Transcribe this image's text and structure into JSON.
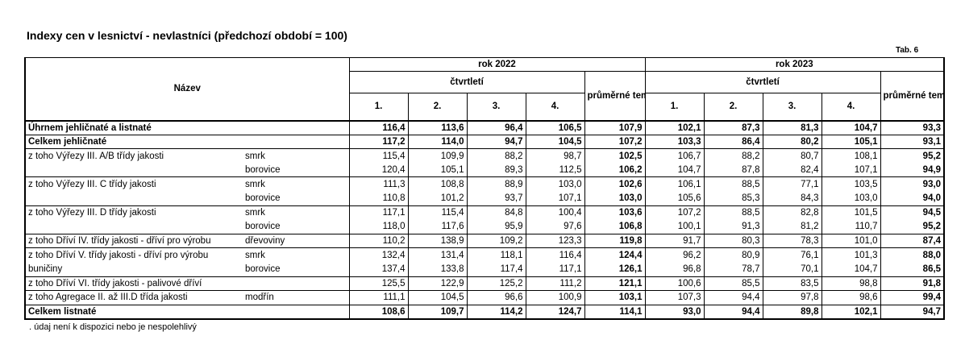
{
  "title": "Indexy cen v lesnictví - nevlastníci (předchozí období  = 100)",
  "tab_label": "Tab. 6",
  "header": {
    "name": "Název",
    "year1": "rok  2022",
    "year2": "rok  2023",
    "quarters": "čtvrtletí",
    "avg": "průměrné tempo růstu",
    "q": [
      "1.",
      "2.",
      "3.",
      "4."
    ]
  },
  "rows": [
    {
      "label": "Úhrnem jehličnaté a listnaté",
      "sub": "",
      "v": [
        "116,4",
        "113,6",
        "96,4",
        "106,5",
        "107,9",
        "102,1",
        "87,3",
        "81,3",
        "104,7",
        "93,3"
      ]
    },
    {
      "label": "Celkem jehličnaté",
      "sub": "",
      "v": [
        "117,2",
        "114,0",
        "94,7",
        "104,5",
        "107,2",
        "103,3",
        "86,4",
        "80,2",
        "105,1",
        "93,1"
      ]
    },
    {
      "label": "z toho Výřezy III. A/B třídy jakosti",
      "sub": "smrk",
      "v": [
        "115,4",
        "109,9",
        "88,2",
        "98,7",
        "102,5",
        "106,7",
        "88,2",
        "80,7",
        "108,1",
        "95,2"
      ]
    },
    {
      "label": "",
      "sub": "borovice",
      "v": [
        "120,4",
        "105,1",
        "89,3",
        "112,5",
        "106,2",
        "104,7",
        "87,8",
        "82,4",
        "107,1",
        "94,9"
      ]
    },
    {
      "label": "z toho Výřezy III. C třídy jakosti",
      "sub": "smrk",
      "v": [
        "111,3",
        "108,8",
        "88,9",
        "103,0",
        "102,6",
        "106,1",
        "88,5",
        "77,1",
        "103,5",
        "93,0"
      ]
    },
    {
      "label": "",
      "sub": "borovice",
      "v": [
        "110,8",
        "101,2",
        "93,7",
        "107,1",
        "103,0",
        "105,6",
        "85,3",
        "84,3",
        "103,0",
        "94,0"
      ]
    },
    {
      "label": "z toho Výřezy III. D třídy jakosti",
      "sub": "smrk",
      "v": [
        "117,1",
        "115,4",
        "84,8",
        "100,4",
        "103,6",
        "107,2",
        "88,5",
        "82,8",
        "101,5",
        "94,5"
      ]
    },
    {
      "label": "",
      "sub": "borovice",
      "v": [
        "118,0",
        "117,6",
        "95,9",
        "97,6",
        "106,8",
        "100,1",
        "91,3",
        "81,2",
        "110,7",
        "95,2"
      ]
    },
    {
      "label": "z toho Dříví IV. třídy jakosti - dříví pro výrobu",
      "sub": "dřevoviny",
      "v": [
        "110,2",
        "138,9",
        "109,2",
        "123,3",
        "119,8",
        "91,7",
        "80,3",
        "78,3",
        "101,0",
        "87,4"
      ]
    },
    {
      "label": "z toho Dříví V. třídy jakosti - dříví pro výrobu",
      "sub": "smrk",
      "v": [
        "132,4",
        "131,4",
        "118,1",
        "116,4",
        "124,4",
        "96,2",
        "80,9",
        "76,1",
        "101,3",
        "88,0"
      ]
    },
    {
      "label": "buničiny",
      "sub": "borovice",
      "v": [
        "137,4",
        "133,8",
        "117,4",
        "117,1",
        "126,1",
        "96,8",
        "78,7",
        "70,1",
        "104,7",
        "86,5"
      ]
    },
    {
      "label": "z toho Dříví VI. třídy jakosti - palivové dříví",
      "sub": "",
      "v": [
        "125,5",
        "122,9",
        "125,2",
        "111,2",
        "121,1",
        "100,6",
        "85,5",
        "83,5",
        "98,8",
        "91,8"
      ]
    },
    {
      "label": "z toho Agregace II. až III.D třída jakosti",
      "sub": "modřín",
      "v": [
        "111,1",
        "104,5",
        "96,6",
        "100,9",
        "103,1",
        "107,3",
        "94,4",
        "97,8",
        "98,6",
        "99,4"
      ]
    },
    {
      "label": "Celkem listnaté",
      "sub": "",
      "v": [
        "108,6",
        "109,7",
        "114,2",
        "124,7",
        "114,1",
        "93,0",
        "94,4",
        "89,8",
        "102,1",
        "94,7"
      ]
    }
  ],
  "footnote": " . údaj není k dispozici nebo je nespolehlivý"
}
